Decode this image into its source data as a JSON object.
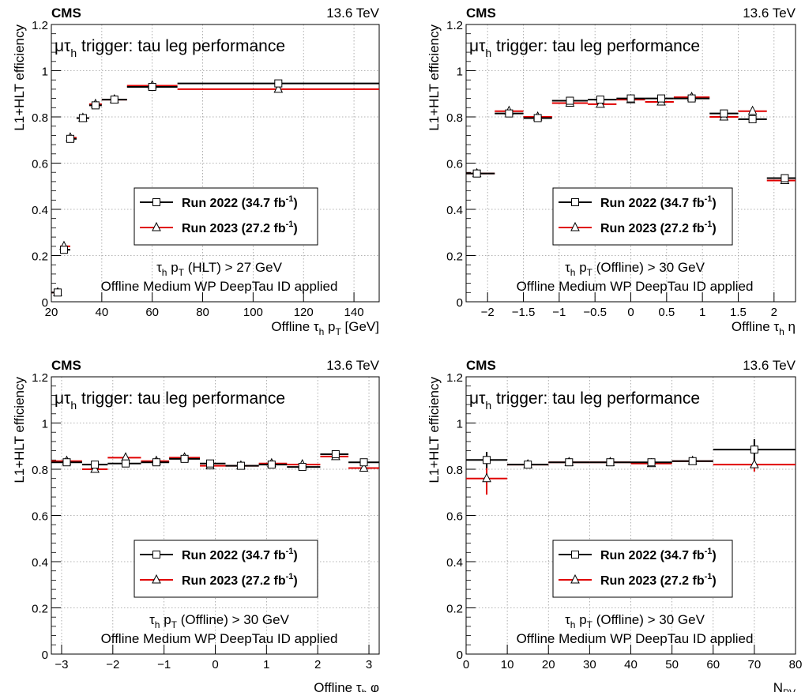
{
  "figure": {
    "experiment": "CMS",
    "energy": "13.6 TeV",
    "trigger_title": "trigger: tau leg performance",
    "trigger_symbol": "μτ",
    "trigger_symbol_sub": "h",
    "y_axis_label": "L1+HLT efficiency",
    "legend": [
      {
        "label": "Run 2022 (34.7 fb",
        "sup": "-1",
        "close": ")",
        "marker": "open-square",
        "color": "#000000"
      },
      {
        "label": "Run 2023 (27.2 fb",
        "sup": "-1",
        "close": ")",
        "marker": "open-triangle",
        "color": "#e00000"
      }
    ],
    "id_text": "Offline Medium WP DeepTau ID applied"
  },
  "chart_data": [
    {
      "type": "scatter",
      "xlabel": "Offline τh pT [GeV]",
      "ylabel": "L1+HLT efficiency",
      "xlim": [
        20,
        150
      ],
      "ylim": [
        0,
        1.2
      ],
      "xticks": [
        20,
        40,
        60,
        80,
        100,
        120,
        140
      ],
      "yticks": [
        0,
        0.2,
        0.4,
        0.6,
        0.8,
        1,
        1.2
      ],
      "cut_text": "τh pT (HLT) > 27 GeV",
      "grid": true,
      "legend_position": "middle-right",
      "series": [
        {
          "name": "Run 2022 (34.7 fb-1)",
          "x": [
            22.5,
            25,
            27.5,
            32.5,
            37.5,
            45,
            60,
            110
          ],
          "xlo": [
            20,
            23.5,
            27.5,
            30,
            35,
            40,
            50,
            70
          ],
          "xhi": [
            23.5,
            27.5,
            30,
            35,
            40,
            50,
            70,
            150
          ],
          "y": [
            0.04,
            0.225,
            0.705,
            0.795,
            0.85,
            0.875,
            0.93,
            0.945
          ]
        },
        {
          "name": "Run 2023 (27.2 fb-1)",
          "x": [
            22.5,
            25,
            27.5,
            32.5,
            37.5,
            45,
            60,
            110
          ],
          "xlo": [
            20,
            23.5,
            27.5,
            30,
            35,
            40,
            50,
            70
          ],
          "xhi": [
            23.5,
            27.5,
            30,
            35,
            40,
            50,
            70,
            150
          ],
          "y": [
            0.04,
            0.24,
            0.71,
            0.795,
            0.855,
            0.875,
            0.935,
            0.92
          ]
        }
      ]
    },
    {
      "type": "scatter",
      "xlabel": "Offline τh η",
      "ylabel": "L1+HLT efficiency",
      "xlim": [
        -2.3,
        2.3
      ],
      "ylim": [
        0,
        1.2
      ],
      "xticks": [
        -2,
        -1.5,
        -1,
        -0.5,
        0,
        0.5,
        1,
        1.5,
        2
      ],
      "yticks": [
        0,
        0.2,
        0.4,
        0.6,
        0.8,
        1,
        1.2
      ],
      "cut_text": "τh pT (Offline) > 30 GeV",
      "grid": true,
      "legend_position": "middle-right",
      "series": [
        {
          "name": "Run 2022 (34.7 fb-1)",
          "x": [
            -2.15,
            -1.7,
            -1.3,
            -0.85,
            -0.425,
            0,
            0.425,
            0.85,
            1.3,
            1.7,
            2.15
          ],
          "xlo": [
            -2.3,
            -1.9,
            -1.5,
            -1.1,
            -0.6,
            -0.2,
            0.2,
            0.6,
            1.1,
            1.5,
            1.9
          ],
          "xhi": [
            -1.9,
            -1.5,
            -1.1,
            -0.6,
            -0.2,
            0.2,
            0.6,
            1.1,
            1.5,
            1.9,
            2.3
          ],
          "y": [
            0.555,
            0.815,
            0.795,
            0.87,
            0.875,
            0.88,
            0.88,
            0.88,
            0.815,
            0.79,
            0.535
          ]
        },
        {
          "name": "Run 2023 (27.2 fb-1)",
          "x": [
            -2.15,
            -1.7,
            -1.3,
            -0.85,
            -0.425,
            0,
            0.425,
            0.85,
            1.3,
            1.7,
            2.15
          ],
          "xlo": [
            -2.3,
            -1.9,
            -1.5,
            -1.1,
            -0.6,
            -0.2,
            0.2,
            0.6,
            1.1,
            1.5,
            1.9
          ],
          "xhi": [
            -1.9,
            -1.5,
            -1.1,
            -0.6,
            -0.2,
            0.2,
            0.6,
            1.1,
            1.5,
            1.9,
            2.3
          ],
          "y": [
            0.555,
            0.825,
            0.8,
            0.86,
            0.855,
            0.875,
            0.865,
            0.885,
            0.8,
            0.825,
            0.525
          ]
        }
      ]
    },
    {
      "type": "scatter",
      "xlabel": "Offline τh φ",
      "ylabel": "L1+HLT efficiency",
      "xlim": [
        -3.2,
        3.2
      ],
      "ylim": [
        0,
        1.2
      ],
      "xticks": [
        -3,
        -2,
        -1,
        0,
        1,
        2,
        3
      ],
      "yticks": [
        0,
        0.2,
        0.4,
        0.6,
        0.8,
        1,
        1.2
      ],
      "cut_text": "τh pT (Offline) > 30 GeV",
      "grid": true,
      "legend_position": "middle-right",
      "series": [
        {
          "name": "Run 2022 (34.7 fb-1)",
          "x": [
            -2.9,
            -2.35,
            -1.75,
            -1.15,
            -0.6,
            -0.1,
            0.5,
            1.1,
            1.7,
            2.35,
            2.9
          ],
          "xlo": [
            -3.2,
            -2.6,
            -2.1,
            -1.45,
            -0.9,
            -0.3,
            0.2,
            0.85,
            1.4,
            2.05,
            2.6
          ],
          "xhi": [
            -2.6,
            -2.1,
            -1.45,
            -0.9,
            -0.3,
            0.2,
            0.85,
            1.4,
            2.05,
            2.6,
            3.2
          ],
          "y": [
            0.83,
            0.82,
            0.825,
            0.83,
            0.845,
            0.825,
            0.815,
            0.82,
            0.81,
            0.865,
            0.83
          ]
        },
        {
          "name": "Run 2023 (27.2 fb-1)",
          "x": [
            -2.9,
            -2.35,
            -1.75,
            -1.15,
            -0.6,
            -0.1,
            0.5,
            1.1,
            1.7,
            2.35,
            2.9
          ],
          "xlo": [
            -3.2,
            -2.6,
            -2.1,
            -1.45,
            -0.9,
            -0.3,
            0.2,
            0.85,
            1.4,
            2.05,
            2.6
          ],
          "xhi": [
            -2.6,
            -2.1,
            -1.45,
            -0.9,
            -0.3,
            0.2,
            0.85,
            1.4,
            2.05,
            2.6,
            3.2
          ],
          "y": [
            0.835,
            0.8,
            0.85,
            0.835,
            0.85,
            0.815,
            0.815,
            0.825,
            0.82,
            0.855,
            0.805
          ]
        }
      ]
    },
    {
      "type": "scatter",
      "xlabel": "NPV",
      "ylabel": "L1+HLT efficiency",
      "xlim": [
        0,
        80
      ],
      "ylim": [
        0,
        1.2
      ],
      "xticks": [
        0,
        10,
        20,
        30,
        40,
        50,
        60,
        70,
        80
      ],
      "yticks": [
        0,
        0.2,
        0.4,
        0.6,
        0.8,
        1,
        1.2
      ],
      "cut_text": "τh pT (Offline) > 30 GeV",
      "grid": true,
      "legend_position": "middle-right",
      "series": [
        {
          "name": "Run 2022 (34.7 fb-1)",
          "x": [
            5,
            15,
            25,
            35,
            45,
            55,
            70
          ],
          "xlo": [
            0,
            10,
            20,
            30,
            40,
            50,
            60
          ],
          "xhi": [
            10,
            20,
            30,
            40,
            50,
            60,
            80
          ],
          "y": [
            0.84,
            0.82,
            0.83,
            0.83,
            0.83,
            0.835,
            0.885
          ],
          "yerr": [
            0.035,
            0.01,
            0.01,
            0.01,
            0.01,
            0.01,
            0.045
          ]
        },
        {
          "name": "Run 2023 (27.2 fb-1)",
          "x": [
            5,
            15,
            25,
            35,
            45,
            55,
            70
          ],
          "xlo": [
            0,
            10,
            20,
            30,
            40,
            50,
            60
          ],
          "xhi": [
            10,
            20,
            30,
            40,
            50,
            60,
            80
          ],
          "y": [
            0.76,
            0.82,
            0.83,
            0.83,
            0.825,
            0.835,
            0.82
          ],
          "yerr": [
            0.07,
            0.01,
            0.01,
            0.01,
            0.01,
            0.01,
            0.03
          ]
        }
      ]
    }
  ]
}
